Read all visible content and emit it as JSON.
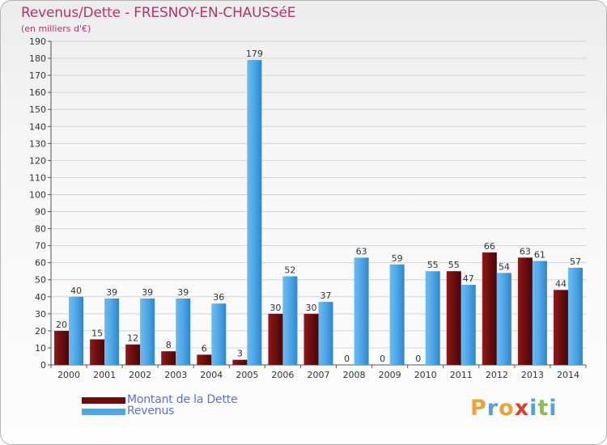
{
  "title": "Revenus/Dette - FRESNOY-EN-CHAUSSéE",
  "subtitle": "(en milliers d'€)",
  "colors": {
    "dette": "#6a0e0e",
    "revenus": "#4ea6e6",
    "title": "#b5336a",
    "legend_text": "#5a70d6"
  },
  "legend": [
    {
      "label": "Montant de la Dette",
      "color": "#6a0e0e"
    },
    {
      "label": "Revenus",
      "color": "#4ea6e6"
    }
  ],
  "logo": {
    "text": "Proxiti",
    "letters": [
      "P",
      "r",
      "o",
      "x",
      "i",
      "t",
      "i"
    ]
  },
  "chart_data": {
    "type": "bar",
    "title": "Revenus/Dette - FRESNOY-EN-CHAUSSéE",
    "ylabel": "(en milliers d'€)",
    "xlabel": "",
    "ylim": [
      0,
      190
    ],
    "ytick_step": 10,
    "grid": true,
    "categories": [
      "2000",
      "2001",
      "2002",
      "2003",
      "2004",
      "2005",
      "2006",
      "2007",
      "2008",
      "2009",
      "2010",
      "2011",
      "2012",
      "2013",
      "2014"
    ],
    "series": [
      {
        "name": "Montant de la Dette",
        "values": [
          20,
          15,
          12,
          8,
          6,
          3,
          30,
          30,
          0,
          0,
          0,
          55,
          66,
          63,
          44
        ]
      },
      {
        "name": "Revenus",
        "values": [
          40,
          39,
          39,
          39,
          36,
          179,
          52,
          37,
          63,
          59,
          55,
          47,
          54,
          61,
          57
        ]
      }
    ]
  }
}
